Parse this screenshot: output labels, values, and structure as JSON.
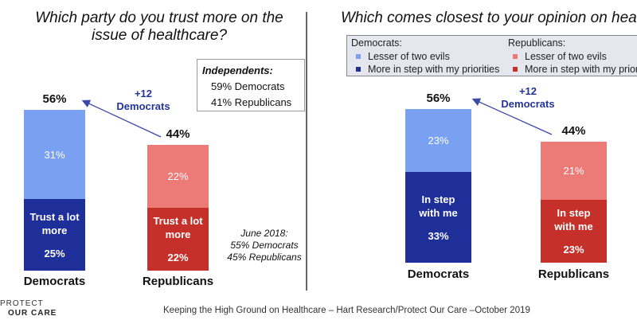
{
  "chart_data": [
    {
      "type": "bar",
      "stacked": true,
      "title": "Which party do you trust more on the issue of healthcare?",
      "categories": [
        "Democrats",
        "Republicans"
      ],
      "totals": [
        "56%",
        "44%"
      ],
      "series": [
        {
          "values": [
            25,
            22
          ],
          "labels": [
            "25%",
            "22%"
          ],
          "inner_label": "Trust a lot more"
        },
        {
          "values": [
            31,
            22
          ],
          "labels": [
            "31%",
            "22%"
          ]
        }
      ],
      "colors": {
        "dem_dark": "#1f2f9a",
        "dem_light": "#7aa0f2",
        "rep_dark": "#c5302a",
        "rep_light": "#ec7b77"
      },
      "annotation": {
        "line1": "+12",
        "line2": "Democrats"
      },
      "independents": {
        "title": "Independents:",
        "lines": [
          "59% Democrats",
          "41% Republicans"
        ]
      },
      "note": {
        "line1": "June 2018:",
        "line2": "55% Democrats",
        "line3": "45% Republicans"
      }
    },
    {
      "type": "bar",
      "stacked": true,
      "title": "Which comes closest to your opinion on healthcare?",
      "categories": [
        "Democrats",
        "Republicans"
      ],
      "totals": [
        "56%",
        "44%"
      ],
      "series": [
        {
          "name": "More in step with my priorities",
          "values": [
            33,
            23
          ],
          "labels": [
            "33%",
            "23%"
          ],
          "inner_label": "In step with me"
        },
        {
          "name": "Lesser of two evils",
          "values": [
            23,
            21
          ],
          "labels": [
            "23%",
            "21%"
          ]
        }
      ],
      "colors": {
        "dem_dark": "#1f2f9a",
        "dem_light": "#7aa0f2",
        "rep_dark": "#c5302a",
        "rep_light": "#ec7b77"
      },
      "annotation": {
        "line1": "+12",
        "line2": "Democrats"
      },
      "legend": {
        "dem_heading": "Democrats:",
        "rep_heading": "Republicans:",
        "items": [
          "Lesser of two evils",
          "More in step with my priorities"
        ]
      }
    }
  ],
  "footer": "Keeping the High Ground on Healthcare – Hart Research/Protect Our Care –October 2019",
  "logo": {
    "line1": "PROTECT",
    "line2": "OUR CARE"
  }
}
